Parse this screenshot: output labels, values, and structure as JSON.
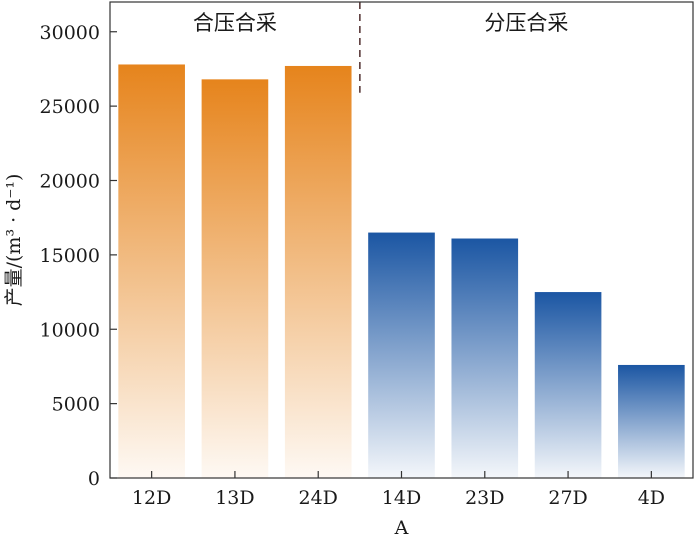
{
  "chart_data": {
    "type": "bar",
    "categories": [
      "12D",
      "13D",
      "24D",
      "14D",
      "23D",
      "27D",
      "4D"
    ],
    "values": [
      27800,
      26800,
      27700,
      16500,
      16100,
      12500,
      7600
    ],
    "bar_groups": [
      "合压合采",
      "合压合采",
      "合压合采",
      "分压合采",
      "分压合采",
      "分压合采",
      "分压合采"
    ],
    "group_labels": [
      "合压合采",
      "分压合采"
    ],
    "xlabel": "A",
    "ylabel": "产量/(m³ · d⁻¹)",
    "ylim": [
      0,
      32000
    ],
    "yticks": [
      0,
      5000,
      10000,
      15000,
      20000,
      25000,
      30000
    ],
    "grid": false,
    "colors": {
      "合压合采": "#e6841c",
      "分压合采": "#1b56a3"
    }
  }
}
